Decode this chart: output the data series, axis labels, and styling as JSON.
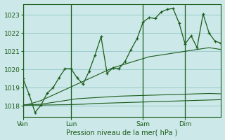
{
  "bg_color": "#cce8e8",
  "grid_color": "#99cccc",
  "line_color": "#1a5c1a",
  "title": "Pression niveau de la mer( hPa )",
  "ylabel_ticks": [
    1018,
    1019,
    1020,
    1021,
    1022,
    1023
  ],
  "ylim": [
    1017.4,
    1023.6
  ],
  "day_labels": [
    "Ven",
    "Lun",
    "Sam",
    "Dim"
  ],
  "day_positions": [
    0,
    8,
    20,
    27
  ],
  "xlim": [
    0,
    33
  ],
  "series_main": [
    1019.5,
    1018.65,
    1017.65,
    1018.05,
    1018.7,
    1019.0,
    1019.55,
    1020.05,
    1020.05,
    1019.55,
    1019.2,
    1019.9,
    1020.8,
    1021.8,
    1019.8,
    1020.1,
    1020.05,
    1020.45,
    1021.1,
    1021.7,
    1022.6,
    1022.85,
    1022.8,
    1023.15,
    1023.3,
    1023.35,
    1022.55,
    1021.4,
    1021.85,
    1021.2,
    1023.05,
    1022.0,
    1021.55,
    1021.45
  ],
  "series_med_slope": [
    1018.05,
    1018.1,
    1018.2,
    1018.3,
    1018.45,
    1018.6,
    1018.75,
    1018.9,
    1019.05,
    1019.2,
    1019.35,
    1019.5,
    1019.65,
    1019.8,
    1019.95,
    1020.1,
    1020.2,
    1020.3,
    1020.4,
    1020.5,
    1020.6,
    1020.7,
    1020.75,
    1020.8,
    1020.85,
    1020.9,
    1020.95,
    1021.0,
    1021.05,
    1021.1,
    1021.15,
    1021.2,
    1021.15,
    1021.1
  ],
  "series_low_slope": [
    1018.05,
    1018.06,
    1018.08,
    1018.1,
    1018.15,
    1018.2,
    1018.25,
    1018.3,
    1018.35,
    1018.4,
    1018.42,
    1018.44,
    1018.46,
    1018.48,
    1018.5,
    1018.52,
    1018.54,
    1018.55,
    1018.56,
    1018.57,
    1018.58,
    1018.59,
    1018.6,
    1018.61,
    1018.62,
    1018.63,
    1018.64,
    1018.65,
    1018.66,
    1018.67,
    1018.68,
    1018.69,
    1018.68,
    1018.67
  ],
  "series_flat": [
    1018.05,
    1018.05,
    1018.05,
    1018.05,
    1018.06,
    1018.06,
    1018.07,
    1018.07,
    1018.08,
    1018.09,
    1018.1,
    1018.12,
    1018.14,
    1018.15,
    1018.16,
    1018.17,
    1018.18,
    1018.19,
    1018.2,
    1018.21,
    1018.22,
    1018.23,
    1018.24,
    1018.25,
    1018.26,
    1018.27,
    1018.28,
    1018.29,
    1018.3,
    1018.31,
    1018.32,
    1018.33,
    1018.34,
    1018.35
  ],
  "npoints": 34
}
